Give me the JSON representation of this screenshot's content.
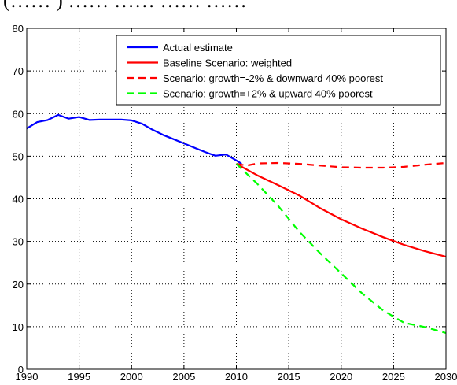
{
  "header_fragment": "(…… ) …… …… …… ……",
  "chart_data": {
    "type": "line",
    "xlim": [
      1990,
      2030
    ],
    "ylim": [
      0,
      80
    ],
    "xticks": [
      1990,
      1995,
      2000,
      2005,
      2010,
      2015,
      2020,
      2025,
      2030
    ],
    "yticks": [
      0,
      10,
      20,
      30,
      40,
      50,
      60,
      70,
      80
    ],
    "xtick_labels": [
      "1990",
      "1995",
      "2000",
      "2005",
      "2010",
      "2015",
      "2020",
      "2025",
      "2030"
    ],
    "ytick_labels": [
      "0",
      "10",
      "20",
      "30",
      "40",
      "50",
      "60",
      "70",
      "80"
    ],
    "grid": "dotted",
    "legend_position": "top-right",
    "series": [
      {
        "name": "Actual estimate",
        "color": "#0000ff",
        "style": "solid",
        "x": [
          1990,
          1991,
          1992,
          1993,
          1994,
          1995,
          1996,
          1997,
          1998,
          1999,
          2000,
          2001,
          2002,
          2003,
          2004,
          2005,
          2006,
          2007,
          2008,
          2009,
          2010,
          2010.5
        ],
        "y": [
          56.5,
          58,
          58.5,
          59.7,
          58.8,
          59.2,
          58.5,
          58.6,
          58.6,
          58.6,
          58.4,
          57.6,
          56.2,
          55,
          54,
          53,
          52,
          51,
          50.1,
          50.4,
          49,
          48.2
        ]
      },
      {
        "name": "Baseline Scenario: weighted",
        "color": "#ff0000",
        "style": "solid",
        "x": [
          2010,
          2012,
          2014,
          2016,
          2018,
          2020,
          2022,
          2024,
          2026,
          2028,
          2030
        ],
        "y": [
          48.2,
          45.5,
          43.2,
          40.8,
          37.8,
          35.2,
          33,
          31,
          29.2,
          27.7,
          26.4
        ]
      },
      {
        "name": "Scenario: growth=-2% & downward 40% poorest",
        "color": "#ff0000",
        "style": "dashed",
        "x": [
          2010,
          2011,
          2012,
          2014,
          2016,
          2018,
          2020,
          2022,
          2024,
          2026,
          2028,
          2030
        ],
        "y": [
          48.2,
          47.8,
          48.3,
          48.4,
          48.2,
          47.8,
          47.4,
          47.3,
          47.3,
          47.5,
          48,
          48.4
        ]
      },
      {
        "name": "Scenario: growth=+2% & upward 40% poorest",
        "color": "#00ff00",
        "style": "dashed",
        "x": [
          2010,
          2012,
          2014,
          2016,
          2018,
          2020,
          2022,
          2024,
          2026,
          2028,
          2030
        ],
        "y": [
          48.2,
          43.5,
          38.3,
          32.3,
          27.2,
          22.5,
          17.8,
          13.8,
          10.9,
          9.9,
          8.5
        ]
      }
    ]
  }
}
